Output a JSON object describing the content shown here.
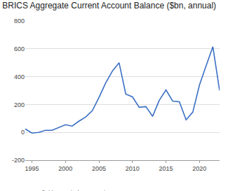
{
  "chart_data": {
    "type": "line",
    "title": "BRICS Aggregate Current Account Balance ($bn, annual)",
    "annotations": [
      "Sources: Refinitiv, Capital Economics"
    ],
    "x": [
      1994,
      1995,
      1996,
      1997,
      1998,
      1999,
      2000,
      2001,
      2002,
      2003,
      2004,
      2005,
      2006,
      2007,
      2008,
      2009,
      2010,
      2011,
      2012,
      2013,
      2014,
      2015,
      2016,
      2017,
      2018,
      2019,
      2020,
      2021,
      2022,
      2023
    ],
    "values": [
      25,
      -5,
      0,
      15,
      15,
      35,
      55,
      45,
      80,
      110,
      155,
      250,
      355,
      440,
      500,
      275,
      255,
      180,
      185,
      115,
      230,
      305,
      225,
      220,
      90,
      145,
      340,
      480,
      615,
      300
    ],
    "color": "#3a6fc4",
    "xlim": [
      1994,
      2023
    ],
    "xticks": [
      1995,
      2000,
      2005,
      2010,
      2015,
      2020
    ],
    "ylim": [
      -200,
      800
    ],
    "yticks": [
      -200,
      0,
      200,
      400,
      600,
      800
    ],
    "grid": true
  }
}
